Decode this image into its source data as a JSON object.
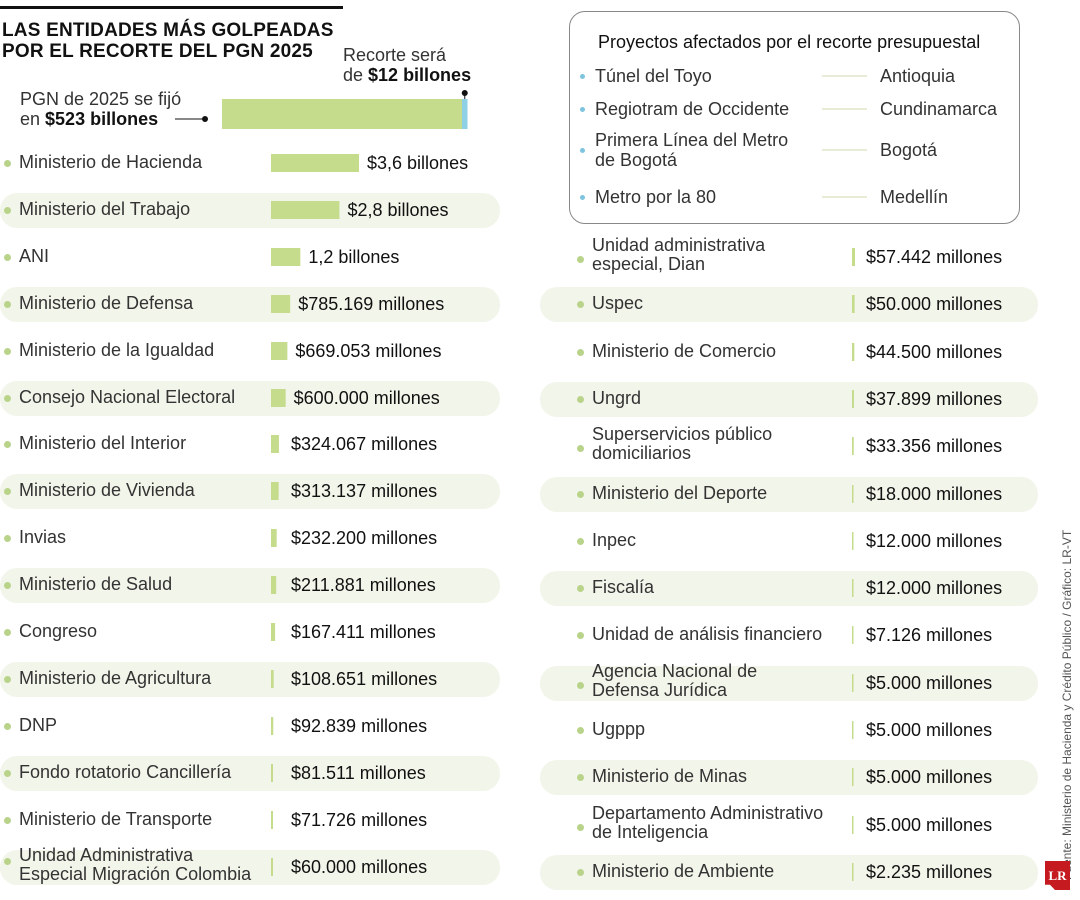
{
  "header": {
    "title_line1": "LAS ENTIDADES MÁS GOLPEADAS",
    "title_line2": "POR EL RECORTE DEL PGN 2025",
    "pgn_label_line1": "PGN de 2025 se fijó",
    "pgn_label_prefix": "en ",
    "pgn_label_value": "$523 billones",
    "recorte_label_line1": "Recorte será",
    "recorte_label_prefix": "de ",
    "recorte_label_value": "$12 billones"
  },
  "colors": {
    "bar": "#c5dc8c",
    "row_band": "#f2f5ea",
    "bullet": "#b9d48a",
    "recorte_marker": "#8fd0e6"
  },
  "projects_panel": {
    "title": "Proyectos afectados por el recorte presupuestal",
    "items": [
      {
        "project": "Túnel del Toyo",
        "region": "Antioquia"
      },
      {
        "project": "Regiotram de Occidente",
        "region": "Cundinamarca"
      },
      {
        "project_line1": "Primera Línea del Metro",
        "project_line2": "de Bogotá",
        "region": "Bogotá"
      },
      {
        "project": "Metro por la 80",
        "region": "Medellín"
      }
    ]
  },
  "chart_data": {
    "type": "bar",
    "title": "LAS ENTIDADES MÁS GOLPEADAS POR EL RECORTE DEL PGN 2025",
    "units": "millones de pesos",
    "totals": {
      "pgn_2025": 523000000,
      "recorte": 12000000
    },
    "left_column": [
      {
        "entity": "Ministerio de Hacienda",
        "value": 3600000,
        "label": "$3,6 billones"
      },
      {
        "entity": "Ministerio del Trabajo",
        "value": 2800000,
        "label": "$2,8 billones"
      },
      {
        "entity": "ANI",
        "value": 1200000,
        "label": "1,2 billones"
      },
      {
        "entity": "Ministerio de Defensa",
        "value": 785169,
        "label": "$785.169 millones"
      },
      {
        "entity": "Ministerio de la Igualdad",
        "value": 669053,
        "label": "$669.053 millones"
      },
      {
        "entity": "Consejo Nacional Electoral",
        "value": 600000,
        "label": "$600.000 millones"
      },
      {
        "entity": "Ministerio del Interior",
        "value": 324067,
        "label": "$324.067 millones"
      },
      {
        "entity": "Ministerio de Vivienda",
        "value": 313137,
        "label": "$313.137 millones"
      },
      {
        "entity": "Invias",
        "value": 232200,
        "label": "$232.200 millones"
      },
      {
        "entity": "Ministerio de Salud",
        "value": 211881,
        "label": "$211.881 millones"
      },
      {
        "entity": "Congreso",
        "value": 167411,
        "label": "$167.411 millones"
      },
      {
        "entity": "Ministerio de Agricultura",
        "value": 108651,
        "label": "$108.651 millones"
      },
      {
        "entity": "DNP",
        "value": 92839,
        "label": "$92.839 millones"
      },
      {
        "entity": "Fondo rotatorio Cancillería",
        "value": 81511,
        "label": "$81.511 millones"
      },
      {
        "entity": "Ministerio de Transporte",
        "value": 71726,
        "label": "$71.726 millones"
      },
      {
        "entity": "Unidad Administrativa",
        "entity_line2": "Especial Migración  Colombia",
        "value": 60000,
        "label": "$60.000 millones"
      }
    ],
    "right_column": [
      {
        "entity": "Unidad administrativa",
        "entity_line2": "especial, Dian",
        "value": 57442,
        "label": "$57.442 millones"
      },
      {
        "entity": "Uspec",
        "value": 50000,
        "label": "$50.000 millones"
      },
      {
        "entity": "Ministerio de Comercio",
        "value": 44500,
        "label": "$44.500 millones"
      },
      {
        "entity": "Ungrd",
        "value": 37899,
        "label": "$37.899 millones"
      },
      {
        "entity": "Superservicios público",
        "entity_line2": "domiciliarios",
        "value": 33356,
        "label": "$33.356 millones"
      },
      {
        "entity": "Ministerio del Deporte",
        "value": 18000,
        "label": "$18.000 millones"
      },
      {
        "entity": "Inpec",
        "value": 12000,
        "label": "$12.000 millones"
      },
      {
        "entity": "Fiscalía",
        "value": 12000,
        "label": "$12.000 millones"
      },
      {
        "entity": "Unidad de análisis financiero",
        "value": 7126,
        "label": "$7.126 millones"
      },
      {
        "entity": "Agencia Nacional de",
        "entity_line2": "Defensa Jurídica",
        "value": 5000,
        "label": "$5.000 millones"
      },
      {
        "entity": "Ugppp",
        "value": 5000,
        "label": "$5.000 millones"
      },
      {
        "entity": "Ministerio de Minas",
        "value": 5000,
        "label": "$5.000 millones"
      },
      {
        "entity": "Departamento Administrativo",
        "entity_line2": "de Inteligencia",
        "value": 5000,
        "label": "$5.000 millones"
      },
      {
        "entity": "Ministerio de Ambiente",
        "value": 2235,
        "label": "$2.235 millones"
      }
    ]
  },
  "footer": {
    "source": "Fuente: Ministerio de Hacienda y Crédito Público / Gráfico: LR-VT",
    "logo": "LR"
  }
}
